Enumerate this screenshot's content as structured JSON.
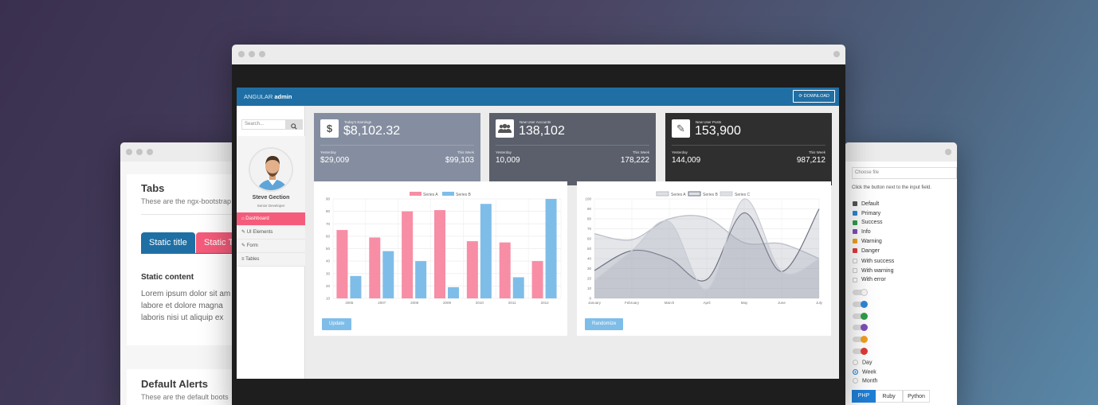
{
  "left_window": {
    "tabs_title": "Tabs",
    "tabs_subtitle": "These are the ngx-bootstrap",
    "tab_static": "Static title",
    "tab_second": "Static T",
    "content_title": "Static content",
    "lorem_lines": [
      "Lorem ipsum dolor sit am",
      "labore et dolore magna",
      "laboris nisi ut aliquip ex"
    ],
    "alerts_title": "Default Alerts",
    "alerts_subtitle": "These are the default boots"
  },
  "right_window": {
    "file_placeholder": "Choose file",
    "file_help": "Click the button next to the input field.",
    "checkboxes": [
      {
        "label": "Default",
        "color": "#555555"
      },
      {
        "label": "Primary",
        "color": "#2e86d6"
      },
      {
        "label": "Success",
        "color": "#2e9e48"
      },
      {
        "label": "Info",
        "color": "#7d4fb8"
      },
      {
        "label": "Warning",
        "color": "#f0a020"
      },
      {
        "label": "Danger",
        "color": "#e03a3a"
      }
    ],
    "validation": [
      "With success",
      "With warning",
      "With error"
    ],
    "toggles": [
      "#dddddd",
      "#2e86d6",
      "#2e9e48",
      "#7d4fb8",
      "#f0a020",
      "#e03a3a"
    ],
    "radios": [
      {
        "label": "Day",
        "checked": false
      },
      {
        "label": "Week",
        "checked": true
      },
      {
        "label": "Month",
        "checked": false
      }
    ],
    "segments": [
      "PHP",
      "Ruby",
      "Python"
    ]
  },
  "app": {
    "brand_light": "ANGULAR",
    "brand_bold": "admin",
    "download_label": "DOWNLOAD",
    "search_placeholder": "Search...",
    "profile_name": "Steve Gection",
    "profile_role": "Senior Developer",
    "nav": [
      "Dashboard",
      "UI Elements",
      "Form",
      "Tables"
    ],
    "stats": [
      {
        "label": "Today's Earnings",
        "value": "$8,102.32",
        "sub1_label": "Yesterday",
        "sub1_value": "$29,009",
        "sub2_label": "This Week",
        "sub2_value": "$99,103",
        "color": "#858ea0",
        "icon": "dollar-icon"
      },
      {
        "label": "New User Accounts",
        "value": "138,102",
        "sub1_label": "Yesterday",
        "sub1_value": "10,009",
        "sub2_label": "This Week",
        "sub2_value": "178,222",
        "color": "#5a5f6b",
        "icon": "users-icon"
      },
      {
        "label": "New User Posts",
        "value": "153,900",
        "sub1_label": "Yesterday",
        "sub1_value": "144,009",
        "sub2_label": "This Week",
        "sub2_value": "987,212",
        "color": "#2f2f2f",
        "icon": "pencil-icon"
      }
    ],
    "update_label": "Update",
    "randomize_label": "Randomize"
  },
  "chart_data": [
    {
      "type": "bar",
      "categories": [
        "2006",
        "2007",
        "2008",
        "2009",
        "2010",
        "2011",
        "2012"
      ],
      "series": [
        {
          "name": "Series A",
          "values": [
            65,
            59,
            80,
            81,
            56,
            55,
            40
          ],
          "color": "#f78ea6"
        },
        {
          "name": "Series B",
          "values": [
            28,
            48,
            40,
            19,
            86,
            27,
            90
          ],
          "color": "#7fbde9"
        }
      ],
      "ylim": [
        10,
        90
      ],
      "yticks": [
        "10",
        "20",
        "30",
        "40",
        "50",
        "60",
        "70",
        "80",
        "90"
      ],
      "legend": "top"
    },
    {
      "type": "area",
      "categories": [
        "January",
        "February",
        "March",
        "April",
        "May",
        "June",
        "July"
      ],
      "series": [
        {
          "name": "Series A",
          "values": [
            65,
            59,
            80,
            81,
            56,
            55,
            40
          ],
          "color": "#b8bcc6"
        },
        {
          "name": "Series B",
          "values": [
            28,
            48,
            40,
            19,
            86,
            27,
            90
          ],
          "color": "#6d7180"
        },
        {
          "name": "Series C",
          "values": [
            18,
            48,
            77,
            9,
            100,
            27,
            40
          ],
          "color": "#c9ccd4"
        }
      ],
      "ylim": [
        0,
        100
      ],
      "yticks": [
        "0",
        "10",
        "20",
        "30",
        "40",
        "50",
        "60",
        "70",
        "80",
        "90",
        "100"
      ],
      "legend": "top"
    }
  ]
}
